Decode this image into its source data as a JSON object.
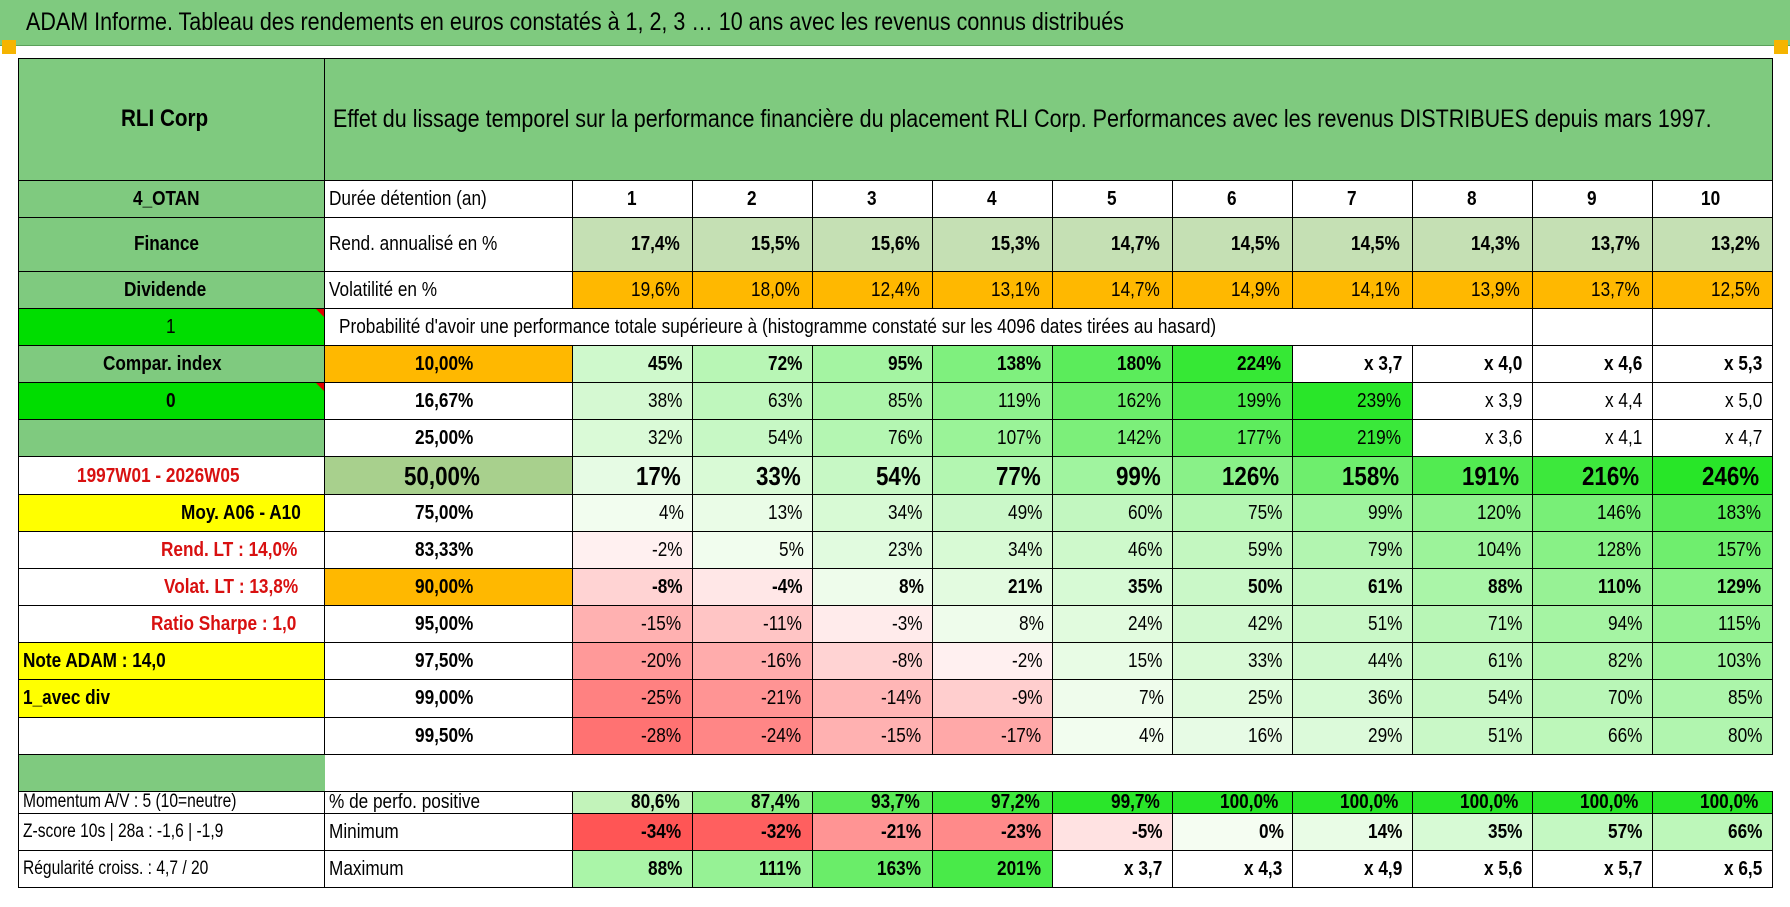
{
  "title": "ADAM Informe. Tableau des rendements en euros constatés à 1, 2, 3 … 10 ans avec les revenus connus distribués",
  "header": {
    "fund": "RLI Corp",
    "description": "Effet du lissage temporel sur la performance financière du placement RLI Corp. Performances avec les revenus DISTRIBUES depuis mars 1997."
  },
  "years_label": "Durée détention (an)",
  "years": [
    "1",
    "2",
    "3",
    "4",
    "5",
    "6",
    "7",
    "8",
    "9",
    "10"
  ],
  "rend_label": "Rend. annualisé en %",
  "rend": [
    "17,4%",
    "15,5%",
    "15,6%",
    "15,3%",
    "14,7%",
    "14,5%",
    "14,5%",
    "14,3%",
    "13,7%",
    "13,2%"
  ],
  "vol_label": "Volatilité en %",
  "vol": [
    "19,6%",
    "18,0%",
    "12,4%",
    "13,1%",
    "14,7%",
    "14,9%",
    "14,1%",
    "13,9%",
    "13,7%",
    "12,5%"
  ],
  "prob_label": "Probabilité d'avoir une performance totale supérieure à (histogramme constaté sur les 4096 dates tirées au hasard)",
  "left_labels": {
    "code": "4_OTAN",
    "sector": "Finance",
    "type": "Dividende",
    "flag1": "1",
    "compar": "Compar. index",
    "flag0": "0",
    "blank": "",
    "period": "1997W01 - 2026W05",
    "moy": "Moy. A06 - A10",
    "rend_lt": "Rend. LT :    14,0%",
    "volat_lt": "Volat. LT :    13,8%",
    "sharpe": "Ratio Sharpe :     1,0",
    "note": "Note ADAM : 14,0",
    "avec_div": "1_avec div",
    "blank2": ""
  },
  "perf_rows": [
    {
      "pct": "10,00%",
      "values": [
        "45%",
        "72%",
        "95%",
        "138%",
        "180%",
        "224%",
        "x 3,7",
        "x 4,0",
        "x 4,6",
        "x 5,3"
      ]
    },
    {
      "pct": "16,67%",
      "values": [
        "38%",
        "63%",
        "85%",
        "119%",
        "162%",
        "199%",
        "239%",
        "x 3,9",
        "x 4,4",
        "x 5,0"
      ]
    },
    {
      "pct": "25,00%",
      "values": [
        "32%",
        "54%",
        "76%",
        "107%",
        "142%",
        "177%",
        "219%",
        "x 3,6",
        "x 4,1",
        "x 4,7"
      ]
    },
    {
      "pct": "50,00%",
      "values": [
        "17%",
        "33%",
        "54%",
        "77%",
        "99%",
        "126%",
        "158%",
        "191%",
        "216%",
        "246%"
      ]
    },
    {
      "pct": "75,00%",
      "values": [
        "4%",
        "13%",
        "34%",
        "49%",
        "60%",
        "75%",
        "99%",
        "120%",
        "146%",
        "183%"
      ]
    },
    {
      "pct": "83,33%",
      "values": [
        "-2%",
        "5%",
        "23%",
        "34%",
        "46%",
        "59%",
        "79%",
        "104%",
        "128%",
        "157%"
      ]
    },
    {
      "pct": "90,00%",
      "values": [
        "-8%",
        "-4%",
        "8%",
        "21%",
        "35%",
        "50%",
        "61%",
        "88%",
        "110%",
        "129%"
      ]
    },
    {
      "pct": "95,00%",
      "values": [
        "-15%",
        "-11%",
        "-3%",
        "8%",
        "24%",
        "42%",
        "51%",
        "71%",
        "94%",
        "115%"
      ]
    },
    {
      "pct": "97,50%",
      "values": [
        "-20%",
        "-16%",
        "-8%",
        "-2%",
        "15%",
        "33%",
        "44%",
        "61%",
        "82%",
        "103%"
      ]
    },
    {
      "pct": "99,00%",
      "values": [
        "-25%",
        "-21%",
        "-14%",
        "-9%",
        "7%",
        "25%",
        "36%",
        "54%",
        "70%",
        "85%"
      ]
    },
    {
      "pct": "99,50%",
      "values": [
        "-28%",
        "-24%",
        "-15%",
        "-17%",
        "4%",
        "16%",
        "29%",
        "51%",
        "66%",
        "80%"
      ]
    }
  ],
  "bottom_rows": [
    {
      "left": "Momentum A/V : 5 (10=neutre)",
      "label": "% de perfo. positive",
      "values": [
        "80,6%",
        "87,4%",
        "93,7%",
        "97,2%",
        "99,7%",
        "100,0%",
        "100,0%",
        "100,0%",
        "100,0%",
        "100,0%"
      ]
    },
    {
      "left": "Z-score 10s | 28a : -1,6 | -1,9",
      "label": "Minimum",
      "values": [
        "-34%",
        "-32%",
        "-21%",
        "-23%",
        "-5%",
        "0%",
        "14%",
        "35%",
        "57%",
        "66%"
      ]
    },
    {
      "left": "Régularité croiss. : 4,7 / 20",
      "label": "Maximum",
      "values": [
        "88%",
        "111%",
        "163%",
        "201%",
        "x 3,7",
        "x 4,3",
        "x 4,9",
        "x 5,6",
        "x 5,7",
        "x 6,5"
      ]
    }
  ],
  "colors": {
    "header_green": "#7fca7f",
    "bright_green": "#00dd00",
    "yellow": "#ffff00",
    "orange": "#ffb800",
    "light_green": "#a8d08d"
  }
}
